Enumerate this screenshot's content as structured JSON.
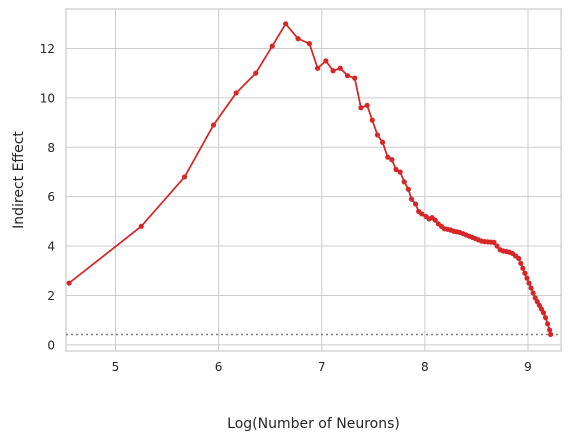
{
  "chart_data": {
    "type": "line",
    "xlabel": "Log(Number of Neurons)",
    "ylabel": "Indirect Effect",
    "xlim": [
      4.52,
      9.32
    ],
    "ylim": [
      -0.25,
      13.6
    ],
    "xticks": [
      5,
      6,
      7,
      8,
      9
    ],
    "yticks": [
      0,
      2,
      4,
      6,
      8,
      10,
      12
    ],
    "grid": true,
    "legend": "none",
    "baseline": {
      "y": 0.42,
      "style": "dotted",
      "color": "#7f7f7f"
    },
    "series": [
      {
        "color": "#d62728",
        "marker": "circle",
        "points": [
          [
            4.55,
            2.5
          ],
          [
            5.25,
            4.8
          ],
          [
            5.67,
            6.8
          ],
          [
            5.95,
            8.9
          ],
          [
            6.17,
            10.2
          ],
          [
            6.36,
            11.0
          ],
          [
            6.52,
            12.1
          ],
          [
            6.65,
            13.0
          ],
          [
            6.77,
            12.4
          ],
          [
            6.88,
            12.2
          ],
          [
            6.96,
            11.2
          ],
          [
            7.04,
            11.5
          ],
          [
            7.11,
            11.1
          ],
          [
            7.18,
            11.2
          ],
          [
            7.25,
            10.9
          ],
          [
            7.32,
            10.8
          ],
          [
            7.38,
            9.6
          ],
          [
            7.44,
            9.7
          ],
          [
            7.49,
            9.1
          ],
          [
            7.54,
            8.5
          ],
          [
            7.59,
            8.2
          ],
          [
            7.64,
            7.6
          ],
          [
            7.68,
            7.5
          ],
          [
            7.72,
            7.1
          ],
          [
            7.76,
            7.0
          ],
          [
            7.8,
            6.6
          ],
          [
            7.84,
            6.3
          ],
          [
            7.87,
            5.9
          ],
          [
            7.91,
            5.7
          ],
          [
            7.94,
            5.4
          ],
          [
            7.97,
            5.3
          ],
          [
            8.01,
            5.2
          ],
          [
            8.04,
            5.1
          ],
          [
            8.07,
            5.15
          ],
          [
            8.1,
            5.05
          ],
          [
            8.13,
            4.9
          ],
          [
            8.16,
            4.8
          ],
          [
            8.19,
            4.7
          ],
          [
            8.22,
            4.68
          ],
          [
            8.25,
            4.65
          ],
          [
            8.28,
            4.6
          ],
          [
            8.31,
            4.58
          ],
          [
            8.34,
            4.55
          ],
          [
            8.37,
            4.5
          ],
          [
            8.4,
            4.45
          ],
          [
            8.43,
            4.4
          ],
          [
            8.46,
            4.35
          ],
          [
            8.49,
            4.3
          ],
          [
            8.52,
            4.25
          ],
          [
            8.55,
            4.2
          ],
          [
            8.58,
            4.18
          ],
          [
            8.61,
            4.17
          ],
          [
            8.64,
            4.16
          ],
          [
            8.67,
            4.15
          ],
          [
            8.7,
            4.0
          ],
          [
            8.73,
            3.85
          ],
          [
            8.76,
            3.8
          ],
          [
            8.79,
            3.78
          ],
          [
            8.82,
            3.75
          ],
          [
            8.85,
            3.7
          ],
          [
            8.88,
            3.6
          ],
          [
            8.91,
            3.5
          ],
          [
            8.93,
            3.3
          ],
          [
            8.95,
            3.1
          ],
          [
            8.97,
            2.9
          ],
          [
            8.99,
            2.7
          ],
          [
            9.01,
            2.5
          ],
          [
            9.03,
            2.3
          ],
          [
            9.05,
            2.1
          ],
          [
            9.07,
            1.9
          ],
          [
            9.09,
            1.75
          ],
          [
            9.11,
            1.6
          ],
          [
            9.13,
            1.45
          ],
          [
            9.15,
            1.3
          ],
          [
            9.17,
            1.1
          ],
          [
            9.19,
            0.85
          ],
          [
            9.21,
            0.6
          ],
          [
            9.22,
            0.42
          ]
        ]
      }
    ]
  }
}
